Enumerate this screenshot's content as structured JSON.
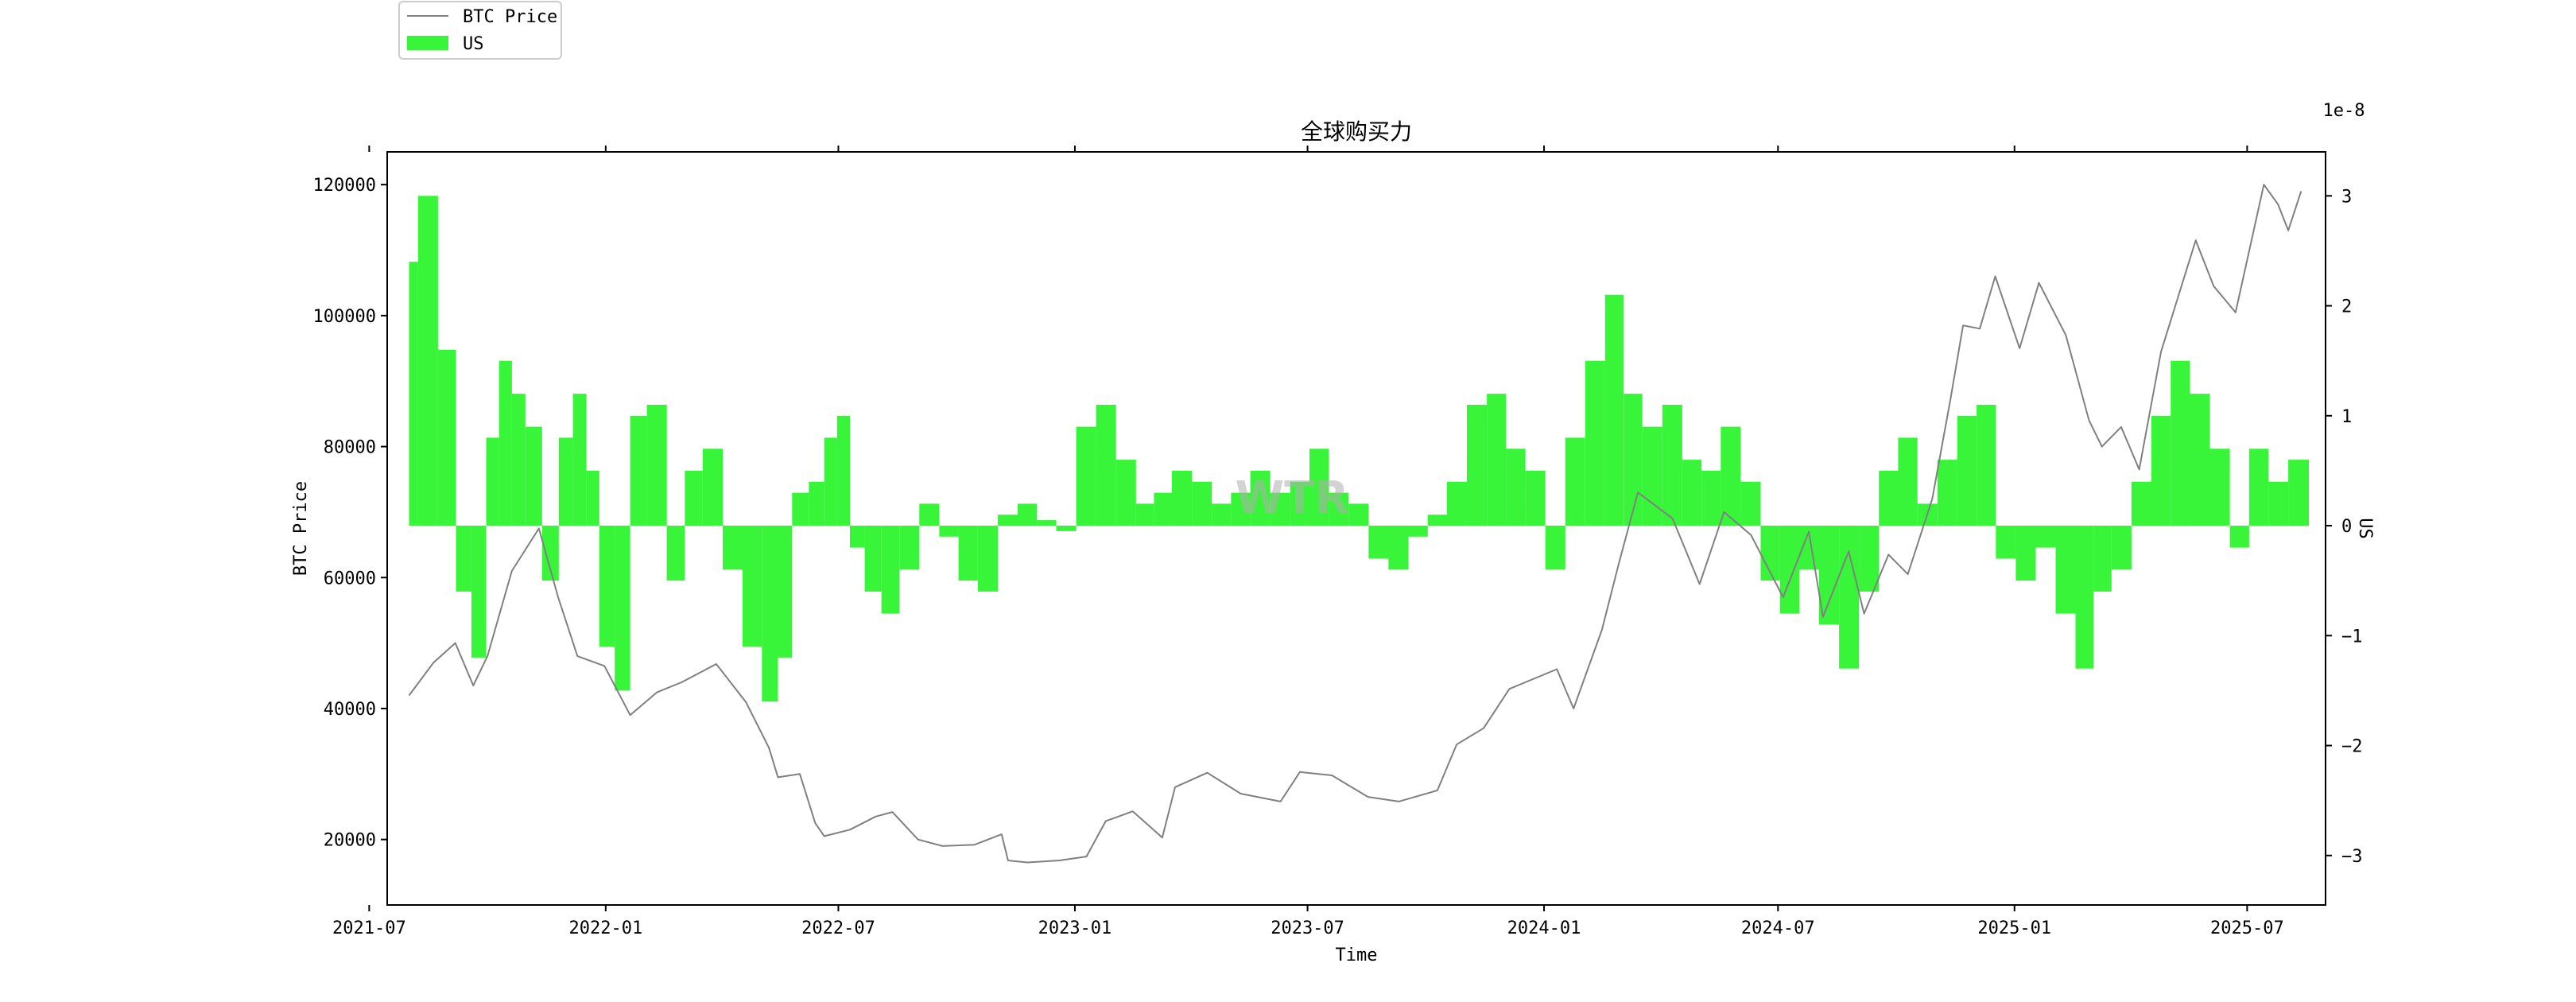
{
  "chart_data": {
    "type": "bar+line",
    "title": "全球购买力",
    "xlabel": "Time",
    "ylabel_left": "BTC Price",
    "ylabel_right": "US",
    "right_axis_scale_label": "1e-8",
    "watermark": "WTR",
    "x_range": [
      "2021-07-15",
      "2025-08-31"
    ],
    "x_ticks": [
      "2021-07",
      "2022-01",
      "2022-07",
      "2023-01",
      "2023-07",
      "2024-01",
      "2024-07",
      "2025-01",
      "2025-07"
    ],
    "y_left_range": [
      10000,
      125000
    ],
    "y_left_ticks": [
      20000,
      40000,
      60000,
      80000,
      100000,
      120000
    ],
    "y_right_range": [
      -3.45,
      3.4
    ],
    "y_right_ticks": [
      -3,
      -2,
      -1,
      0,
      1,
      2,
      3
    ],
    "legend": {
      "placement": "top-left, outside plot",
      "entries": [
        {
          "label": "BTC Price",
          "kind": "line",
          "color": "#808080"
        },
        {
          "label": "US",
          "kind": "bar",
          "color": "#39f539"
        }
      ]
    },
    "series": [
      {
        "name": "BTC Price",
        "axis": "left",
        "kind": "line",
        "color": "#808080",
        "x": [
          "2021-08-01",
          "2021-08-20",
          "2021-09-06",
          "2021-09-20",
          "2021-10-01",
          "2021-10-20",
          "2021-11-10",
          "2021-11-25",
          "2021-12-10",
          "2021-12-31",
          "2022-01-20",
          "2022-02-10",
          "2022-03-01",
          "2022-03-28",
          "2022-04-20",
          "2022-05-08",
          "2022-05-15",
          "2022-06-01",
          "2022-06-13",
          "2022-06-20",
          "2022-07-10",
          "2022-07-30",
          "2022-08-12",
          "2022-09-01",
          "2022-09-20",
          "2022-10-15",
          "2022-11-05",
          "2022-11-10",
          "2022-11-25",
          "2022-12-20",
          "2023-01-10",
          "2023-01-25",
          "2023-02-15",
          "2023-03-10",
          "2023-03-20",
          "2023-04-14",
          "2023-05-10",
          "2023-06-10",
          "2023-06-25",
          "2023-07-20",
          "2023-08-17",
          "2023-09-10",
          "2023-10-10",
          "2023-10-25",
          "2023-11-15",
          "2023-12-05",
          "2024-01-11",
          "2024-01-24",
          "2024-02-15",
          "2024-02-28",
          "2024-03-14",
          "2024-04-10",
          "2024-05-01",
          "2024-05-20",
          "2024-06-10",
          "2024-07-05",
          "2024-07-25",
          "2024-08-05",
          "2024-08-25",
          "2024-09-06",
          "2024-09-25",
          "2024-10-10",
          "2024-10-29",
          "2024-11-12",
          "2024-11-22",
          "2024-12-05",
          "2024-12-17",
          "2025-01-05",
          "2025-01-20",
          "2025-02-10",
          "2025-02-28",
          "2025-03-10",
          "2025-03-25",
          "2025-04-08",
          "2025-04-25",
          "2025-05-22",
          "2025-06-05",
          "2025-06-22",
          "2025-07-14",
          "2025-07-25",
          "2025-08-02",
          "2025-08-12"
        ],
        "values": [
          42000,
          47000,
          50000,
          43500,
          48000,
          61000,
          67500,
          57000,
          48000,
          46500,
          39000,
          42500,
          44000,
          46800,
          41000,
          34000,
          29500,
          30000,
          22500,
          20500,
          21500,
          23500,
          24200,
          20000,
          19000,
          19200,
          20800,
          16800,
          16500,
          16800,
          17400,
          22800,
          24300,
          20300,
          28000,
          30200,
          27000,
          25800,
          30300,
          29800,
          26500,
          25800,
          27500,
          34500,
          37000,
          43000,
          46000,
          40000,
          52000,
          62000,
          73000,
          69000,
          59000,
          70000,
          66500,
          57000,
          67000,
          54000,
          64000,
          54500,
          63500,
          60500,
          72000,
          87000,
          98500,
          98000,
          106000,
          95000,
          105000,
          97000,
          84000,
          80000,
          83000,
          76500,
          94500,
          111500,
          104500,
          100500,
          120000,
          117000,
          113000,
          119000
        ]
      },
      {
        "name": "US",
        "axis": "right",
        "kind": "bar",
        "color": "#39f539",
        "x": [
          "2021-08-01",
          "2021-08-15",
          "2021-09-01",
          "2021-09-12",
          "2021-09-25",
          "2021-10-05",
          "2021-10-15",
          "2021-10-25",
          "2021-11-05",
          "2021-11-20",
          "2021-12-01",
          "2021-12-12",
          "2021-12-22",
          "2022-01-01",
          "2022-01-15",
          "2022-01-25",
          "2022-02-10",
          "2022-02-25",
          "2022-03-10",
          "2022-03-25",
          "2022-04-10",
          "2022-04-25",
          "2022-05-10",
          "2022-05-20",
          "2022-06-01",
          "2022-06-15",
          "2022-06-25",
          "2022-07-05",
          "2022-07-15",
          "2022-07-28",
          "2022-08-10",
          "2022-08-25",
          "2022-09-10",
          "2022-09-25",
          "2022-10-10",
          "2022-10-25",
          "2022-11-10",
          "2022-11-25",
          "2022-12-10",
          "2022-12-25",
          "2023-01-10",
          "2023-01-25",
          "2023-02-10",
          "2023-02-25",
          "2023-03-10",
          "2023-03-25",
          "2023-04-10",
          "2023-04-25",
          "2023-05-10",
          "2023-05-25",
          "2023-06-10",
          "2023-06-25",
          "2023-07-10",
          "2023-07-25",
          "2023-08-10",
          "2023-08-25",
          "2023-09-10",
          "2023-09-25",
          "2023-10-10",
          "2023-10-25",
          "2023-11-10",
          "2023-11-25",
          "2023-12-10",
          "2023-12-25",
          "2024-01-10",
          "2024-01-25",
          "2024-02-10",
          "2024-02-25",
          "2024-03-10",
          "2024-03-25",
          "2024-04-10",
          "2024-04-25",
          "2024-05-10",
          "2024-05-25",
          "2024-06-10",
          "2024-06-25",
          "2024-07-10",
          "2024-07-25",
          "2024-08-10",
          "2024-08-25",
          "2024-09-10",
          "2024-09-25",
          "2024-10-10",
          "2024-10-25",
          "2024-11-10",
          "2024-11-25",
          "2024-12-10",
          "2024-12-25",
          "2025-01-10",
          "2025-01-25",
          "2025-02-10",
          "2025-02-25",
          "2025-03-10",
          "2025-03-25",
          "2025-04-10",
          "2025-04-25",
          "2025-05-10",
          "2025-05-25",
          "2025-06-10",
          "2025-06-25",
          "2025-07-10",
          "2025-07-25",
          "2025-08-10"
        ],
        "values": [
          2.4,
          3.0,
          1.6,
          -0.6,
          -1.2,
          0.8,
          1.5,
          1.2,
          0.9,
          -0.5,
          0.8,
          1.2,
          0.5,
          -1.1,
          -1.5,
          1.0,
          1.1,
          -0.5,
          0.5,
          0.7,
          -0.4,
          -1.1,
          -1.6,
          -1.2,
          0.3,
          0.4,
          0.8,
          1.0,
          -0.2,
          -0.6,
          -0.8,
          -0.4,
          0.2,
          -0.1,
          -0.5,
          -0.6,
          0.1,
          0.2,
          0.05,
          -0.05,
          0.9,
          1.1,
          0.6,
          0.2,
          0.3,
          0.5,
          0.4,
          0.2,
          0.3,
          0.5,
          0.3,
          0.4,
          0.7,
          0.3,
          0.2,
          -0.3,
          -0.4,
          -0.1,
          0.1,
          0.4,
          1.1,
          1.2,
          0.7,
          0.5,
          -0.4,
          0.8,
          1.5,
          2.1,
          1.2,
          0.9,
          1.1,
          0.6,
          0.5,
          0.9,
          0.4,
          -0.5,
          -0.8,
          -0.4,
          -0.9,
          -1.3,
          -0.6,
          0.5,
          0.8,
          0.2,
          0.6,
          1.0,
          1.1,
          -0.3,
          -0.5,
          -0.2,
          -0.8,
          -1.3,
          -0.6,
          -0.4,
          0.4,
          1.0,
          1.5,
          1.2,
          0.7,
          -0.2,
          0.7,
          0.4,
          0.6
        ]
      }
    ]
  }
}
